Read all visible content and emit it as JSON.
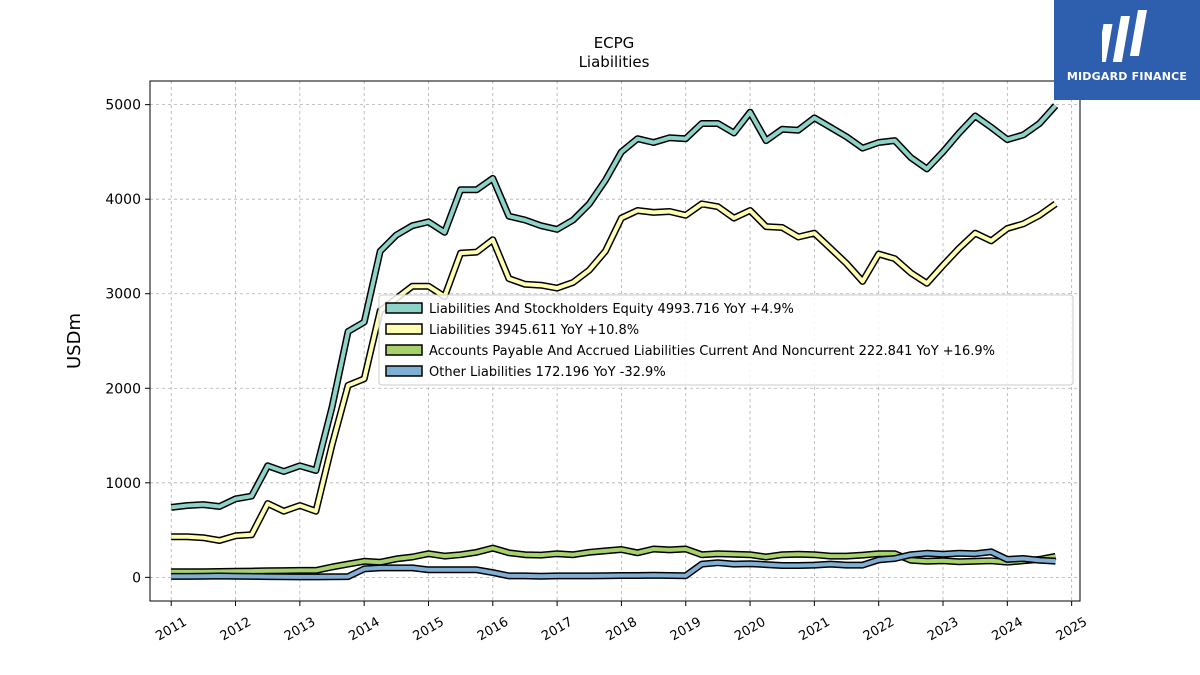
{
  "brand": {
    "name": "MIDGARD FINANCE",
    "accent": "#2d5fae"
  },
  "chart_data": {
    "type": "line",
    "title": "ECPG",
    "subtitle": "Liabilities",
    "xlabel": "",
    "ylabel": "USDm",
    "xlim": [
      2010.67,
      2025.13
    ],
    "ylim": [
      -250,
      5250
    ],
    "yticks": [
      0,
      1000,
      2000,
      3000,
      4000,
      5000
    ],
    "xticks": [
      "2011",
      "2012",
      "2013",
      "2014",
      "2015",
      "2016",
      "2017",
      "2018",
      "2019",
      "2020",
      "2021",
      "2022",
      "2023",
      "2024",
      "2025"
    ],
    "grid": true,
    "legend_position": "center-right",
    "x": [
      2011.0,
      2011.25,
      2011.5,
      2011.75,
      2012.0,
      2012.25,
      2012.5,
      2012.75,
      2013.0,
      2013.25,
      2013.5,
      2013.75,
      2014.0,
      2014.25,
      2014.5,
      2014.75,
      2015.0,
      2015.25,
      2015.5,
      2015.75,
      2016.0,
      2016.25,
      2016.5,
      2016.75,
      2017.0,
      2017.25,
      2017.5,
      2017.75,
      2018.0,
      2018.25,
      2018.5,
      2018.75,
      2019.0,
      2019.25,
      2019.5,
      2019.75,
      2020.0,
      2020.25,
      2020.5,
      2020.75,
      2021.0,
      2021.25,
      2021.5,
      2021.75,
      2022.0,
      2022.25,
      2022.5,
      2022.75,
      2023.0,
      2023.25,
      2023.5,
      2023.75,
      2024.0,
      2024.25,
      2024.5,
      2024.75
    ],
    "series": [
      {
        "name": "Liabilities And Stockholders Equity",
        "legend": "Liabilities And Stockholders Equity  4993.716 YoY +4.9%",
        "color": "#8dd3c7",
        "values": [
          740,
          760,
          770,
          750,
          830,
          860,
          1180,
          1120,
          1180,
          1130,
          1800,
          2600,
          2700,
          3450,
          3620,
          3720,
          3760,
          3650,
          4100,
          4100,
          4220,
          3820,
          3780,
          3720,
          3680,
          3780,
          3950,
          4200,
          4500,
          4640,
          4600,
          4650,
          4640,
          4800,
          4800,
          4700,
          4920,
          4620,
          4740,
          4730,
          4860,
          4760,
          4660,
          4540,
          4600,
          4620,
          4440,
          4320,
          4500,
          4700,
          4880,
          4760,
          4630,
          4680,
          4800,
          4990
        ]
      },
      {
        "name": "Liabilities",
        "legend": "Liabilities  3945.611 YoY +10.8%",
        "color": "#ffffb3",
        "values": [
          430,
          430,
          420,
          390,
          440,
          450,
          780,
          700,
          760,
          700,
          1400,
          2030,
          2100,
          2820,
          2950,
          3080,
          3080,
          2970,
          3430,
          3440,
          3570,
          3160,
          3100,
          3090,
          3060,
          3120,
          3250,
          3450,
          3800,
          3880,
          3860,
          3870,
          3830,
          3950,
          3920,
          3800,
          3880,
          3710,
          3700,
          3600,
          3640,
          3480,
          3320,
          3130,
          3420,
          3370,
          3220,
          3110,
          3300,
          3480,
          3640,
          3560,
          3690,
          3740,
          3830,
          3950
        ]
      },
      {
        "name": "Accounts Payable And Accrued Liabilities Current And Noncurrent",
        "legend": "Accounts Payable And Accrued Liabilities Current And Noncurrent  222.841 YoY +16.9%",
        "color": "#a6d16b",
        "values": [
          60,
          60,
          60,
          62,
          64,
          66,
          70,
          72,
          74,
          74,
          110,
          140,
          170,
          160,
          195,
          215,
          250,
          225,
          240,
          265,
          310,
          260,
          240,
          235,
          250,
          240,
          265,
          280,
          295,
          260,
          300,
          290,
          300,
          240,
          250,
          245,
          240,
          215,
          240,
          245,
          240,
          225,
          225,
          235,
          250,
          250,
          180,
          170,
          175,
          165,
          170,
          175,
          160,
          175,
          190,
          223
        ]
      },
      {
        "name": "Other Liabilities",
        "legend": "Other Liabilities  172.196 YoY -32.9%",
        "color": "#7fafd3",
        "values": [
          10,
          10,
          12,
          14,
          12,
          10,
          8,
          6,
          5,
          5,
          6,
          8,
          90,
          100,
          100,
          100,
          80,
          80,
          80,
          80,
          50,
          15,
          15,
          12,
          15,
          15,
          15,
          18,
          20,
          20,
          22,
          20,
          18,
          140,
          155,
          140,
          145,
          135,
          125,
          125,
          130,
          140,
          130,
          130,
          185,
          200,
          240,
          255,
          245,
          255,
          250,
          270,
          190,
          200,
          180,
          172
        ]
      }
    ]
  }
}
